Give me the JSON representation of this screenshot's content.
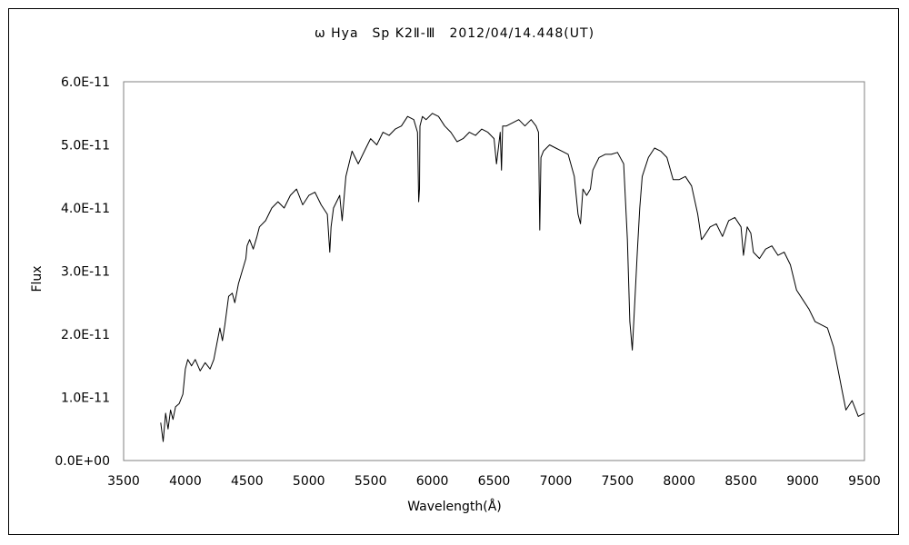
{
  "chart_data": {
    "type": "line",
    "title": "ω Hya　Sp K2Ⅱ-Ⅲ　2012/04/14.448(UT)",
    "xlabel": "Wavelength(Å)",
    "ylabel": "Flux",
    "xlim": [
      3500,
      9500
    ],
    "ylim": [
      0,
      6e-11
    ],
    "x_ticks": [
      "3500",
      "4000",
      "4500",
      "5000",
      "5500",
      "6000",
      "6500",
      "7000",
      "7500",
      "8000",
      "8500",
      "9000",
      "9500"
    ],
    "y_ticks": [
      "0.0E+00",
      "1.0E-11",
      "2.0E-11",
      "3.0E-11",
      "4.0E-11",
      "5.0E-11",
      "6.0E-11"
    ],
    "grid": false,
    "legend": "none",
    "line_color": "#000000",
    "series": [
      {
        "x": [
          3800,
          3820,
          3840,
          3860,
          3880,
          3900,
          3920,
          3950,
          3980,
          4000,
          4020,
          4050,
          4080,
          4120,
          4160,
          4200,
          4230,
          4260,
          4280,
          4300,
          4320,
          4350,
          4380,
          4400,
          4430,
          4460,
          4490,
          4500,
          4520,
          4550,
          4580,
          4600,
          4650,
          4700,
          4750,
          4800,
          4850,
          4900,
          4950,
          5000,
          5050,
          5100,
          5150,
          5170,
          5180,
          5200,
          5250,
          5270,
          5300,
          5350,
          5400,
          5450,
          5500,
          5550,
          5600,
          5650,
          5700,
          5750,
          5800,
          5850,
          5880,
          5890,
          5896,
          5900,
          5920,
          5950,
          6000,
          6050,
          6100,
          6150,
          6200,
          6250,
          6300,
          6350,
          6400,
          6450,
          6500,
          6520,
          6550,
          6560,
          6570,
          6600,
          6650,
          6700,
          6750,
          6800,
          6840,
          6860,
          6870,
          6880,
          6900,
          6950,
          7000,
          7050,
          7100,
          7150,
          7180,
          7200,
          7220,
          7250,
          7280,
          7300,
          7350,
          7400,
          7450,
          7500,
          7550,
          7580,
          7600,
          7620,
          7640,
          7660,
          7680,
          7700,
          7750,
          7800,
          7850,
          7900,
          7950,
          8000,
          8050,
          8100,
          8150,
          8180,
          8200,
          8250,
          8300,
          8350,
          8400,
          8450,
          8500,
          8520,
          8550,
          8580,
          8600,
          8650,
          8700,
          8750,
          8800,
          8850,
          8900,
          8950,
          9000,
          9050,
          9100,
          9150,
          9200,
          9250,
          9300,
          9320,
          9350,
          9400,
          9450,
          9500
        ],
        "y": [
          6e-12,
          3e-12,
          7.5e-12,
          5e-12,
          8e-12,
          6.5e-12,
          8.5e-12,
          9e-12,
          1.05e-11,
          1.45e-11,
          1.6e-11,
          1.5e-11,
          1.6e-11,
          1.42e-11,
          1.55e-11,
          1.45e-11,
          1.6e-11,
          1.9e-11,
          2.1e-11,
          1.9e-11,
          2.15e-11,
          2.6e-11,
          2.65e-11,
          2.5e-11,
          2.8e-11,
          3e-11,
          3.2e-11,
          3.4e-11,
          3.5e-11,
          3.35e-11,
          3.55e-11,
          3.7e-11,
          3.8e-11,
          4e-11,
          4.1e-11,
          4e-11,
          4.2e-11,
          4.3e-11,
          4.05e-11,
          4.2e-11,
          4.25e-11,
          4.05e-11,
          3.9e-11,
          3.3e-11,
          3.7e-11,
          4e-11,
          4.2e-11,
          3.8e-11,
          4.5e-11,
          4.9e-11,
          4.7e-11,
          4.9e-11,
          5.1e-11,
          5e-11,
          5.2e-11,
          5.15e-11,
          5.25e-11,
          5.3e-11,
          5.45e-11,
          5.4e-11,
          5.2e-11,
          4.1e-11,
          4.3e-11,
          5.3e-11,
          5.45e-11,
          5.4e-11,
          5.5e-11,
          5.45e-11,
          5.3e-11,
          5.2e-11,
          5.05e-11,
          5.1e-11,
          5.2e-11,
          5.15e-11,
          5.25e-11,
          5.2e-11,
          5.1e-11,
          4.7e-11,
          5.2e-11,
          4.6e-11,
          5.3e-11,
          5.3e-11,
          5.35e-11,
          5.4e-11,
          5.3e-11,
          5.4e-11,
          5.3e-11,
          5.2e-11,
          3.65e-11,
          4.8e-11,
          4.9e-11,
          5e-11,
          4.95e-11,
          4.9e-11,
          4.85e-11,
          4.5e-11,
          3.9e-11,
          3.75e-11,
          4.3e-11,
          4.2e-11,
          4.3e-11,
          4.6e-11,
          4.8e-11,
          4.85e-11,
          4.85e-11,
          4.88e-11,
          4.7e-11,
          3.5e-11,
          2.2e-11,
          1.75e-11,
          2.5e-11,
          3.3e-11,
          4e-11,
          4.5e-11,
          4.8e-11,
          4.95e-11,
          4.9e-11,
          4.8e-11,
          4.45e-11,
          4.45e-11,
          4.5e-11,
          4.35e-11,
          3.9e-11,
          3.5e-11,
          3.55e-11,
          3.7e-11,
          3.75e-11,
          3.55e-11,
          3.8e-11,
          3.85e-11,
          3.7e-11,
          3.25e-11,
          3.7e-11,
          3.6e-11,
          3.3e-11,
          3.2e-11,
          3.35e-11,
          3.4e-11,
          3.25e-11,
          3.3e-11,
          3.1e-11,
          2.7e-11,
          2.55e-11,
          2.4e-11,
          2.2e-11,
          2.15e-11,
          2.1e-11,
          1.8e-11,
          1.3e-11,
          1.1e-11,
          8e-12,
          9.5e-12,
          7e-12,
          7.5e-12
        ]
      }
    ]
  }
}
